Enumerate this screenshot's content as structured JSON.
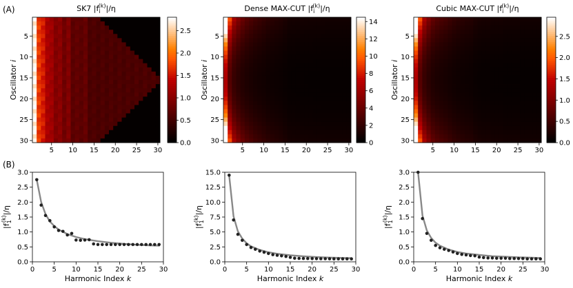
{
  "panel_labels": [
    "(A)",
    "(B)"
  ],
  "chart_data": [
    {
      "type": "heatmap",
      "title": "SK7 |f_i^(k)|/η",
      "ylabel": "Oscillator i",
      "x_ticks": [
        "5",
        "10",
        "15",
        "20",
        "25",
        "30"
      ],
      "y_ticks": [
        "5",
        "10",
        "15",
        "20",
        "25",
        "30"
      ],
      "colorbar_ticks": [
        "0.0",
        "0.5",
        "1.0",
        "1.5",
        "2.0",
        "2.5"
      ],
      "vmin": 0,
      "vmax": 2.8,
      "colormap": "gist_heat",
      "k_range": [
        1,
        30
      ],
      "i_range": [
        1,
        30
      ],
      "values_by_k": [
        2.75,
        1.9,
        1.55,
        1.38,
        1.17,
        1.05,
        1.02,
        0.9,
        0.95,
        0.73,
        0.72,
        0.73,
        0.74,
        0.6,
        0.58,
        0.58,
        0.58,
        0.58,
        0.58,
        0.58,
        0.58,
        0.58,
        0.58,
        0.58,
        0.58,
        0.58,
        0.58,
        0.58,
        0.58,
        0.58
      ],
      "pattern": "triangle of zeros for harmonics beyond the middle oscillators"
    },
    {
      "type": "heatmap",
      "title": "Dense MAX-CUT |f_i^(k)|/η",
      "ylabel": "Oscillator i",
      "x_ticks": [
        "5",
        "10",
        "15",
        "20",
        "25",
        "30"
      ],
      "y_ticks": [
        "5",
        "10",
        "15",
        "20",
        "25",
        "30"
      ],
      "colorbar_ticks": [
        "0",
        "2",
        "4",
        "6",
        "8",
        "10",
        "12",
        "14"
      ],
      "vmin": 0,
      "vmax": 14.5,
      "colormap": "gist_heat",
      "k_range": [
        1,
        30
      ],
      "i_range": [
        1,
        30
      ],
      "values_by_k": [
        14.5,
        7.0,
        4.6,
        3.6,
        2.9,
        2.4,
        2.1,
        1.8,
        1.6,
        1.4,
        1.2,
        1.1,
        1.0,
        0.9,
        0.75,
        0.6,
        0.58,
        0.56,
        0.55,
        0.54,
        0.53,
        0.52,
        0.52,
        0.51,
        0.5,
        0.5,
        0.5,
        0.5,
        0.5,
        0.5
      ]
    },
    {
      "type": "heatmap",
      "title": "Cubic MAX-CUT |f_i^(k)|/η",
      "ylabel": "Oscillator i",
      "x_ticks": [
        "5",
        "10",
        "15",
        "20",
        "25",
        "30"
      ],
      "y_ticks": [
        "5",
        "10",
        "15",
        "20",
        "25",
        "30"
      ],
      "colorbar_ticks": [
        "0.0",
        "0.5",
        "1.0",
        "1.5",
        "2.0",
        "2.5"
      ],
      "vmin": 0,
      "vmax": 2.95,
      "colormap": "gist_heat",
      "k_range": [
        1,
        30
      ],
      "i_range": [
        1,
        30
      ],
      "values_by_k": [
        3.0,
        1.45,
        0.95,
        0.72,
        0.55,
        0.47,
        0.42,
        0.38,
        0.33,
        0.28,
        0.25,
        0.23,
        0.21,
        0.2,
        0.16,
        0.14,
        0.13,
        0.13,
        0.12,
        0.12,
        0.12,
        0.11,
        0.11,
        0.11,
        0.11,
        0.1,
        0.1,
        0.1,
        0.1,
        0.1
      ]
    },
    {
      "type": "scatter",
      "xlabel": "Harmonic Index k",
      "ylabel": "|f_1^(k)|/η",
      "x_ticks": [
        "0",
        "5",
        "10",
        "15",
        "20",
        "25",
        "30"
      ],
      "y_ticks": [
        "0.0",
        "0.5",
        "1.0",
        "1.5",
        "2.0",
        "2.5",
        "3.0"
      ],
      "xlim": [
        0,
        30
      ],
      "ylim": [
        0,
        3.0
      ],
      "points": {
        "x": [
          1,
          2,
          3,
          4,
          5,
          6,
          7,
          8,
          9,
          10,
          11,
          12,
          13,
          14,
          15,
          16,
          17,
          18,
          19,
          20,
          21,
          22,
          23,
          24,
          25,
          26,
          27,
          28,
          29
        ],
        "y": [
          2.75,
          1.9,
          1.55,
          1.38,
          1.17,
          1.05,
          1.02,
          0.9,
          0.95,
          0.73,
          0.72,
          0.73,
          0.74,
          0.6,
          0.58,
          0.58,
          0.58,
          0.58,
          0.58,
          0.58,
          0.58,
          0.58,
          0.58,
          0.58,
          0.58,
          0.58,
          0.58,
          0.58,
          0.58
        ]
      },
      "fit": {
        "x": [
          1,
          2,
          3,
          4,
          5,
          6,
          8,
          10,
          12,
          15,
          18,
          21,
          24,
          27,
          29
        ],
        "y": [
          2.75,
          2.0,
          1.6,
          1.35,
          1.2,
          1.08,
          0.93,
          0.83,
          0.76,
          0.69,
          0.64,
          0.6,
          0.57,
          0.55,
          0.54
        ]
      }
    },
    {
      "type": "scatter",
      "xlabel": "Harmonic Index k",
      "ylabel": "|f_1^(k)|/η",
      "x_ticks": [
        "0",
        "5",
        "10",
        "15",
        "20",
        "25",
        "30"
      ],
      "y_ticks": [
        "0.0",
        "2.5",
        "5.0",
        "7.5",
        "10.0",
        "12.5",
        "15.0"
      ],
      "xlim": [
        0,
        30
      ],
      "ylim": [
        0,
        15.0
      ],
      "points": {
        "x": [
          1,
          2,
          3,
          4,
          5,
          6,
          7,
          8,
          9,
          10,
          11,
          12,
          13,
          14,
          15,
          16,
          17,
          18,
          19,
          20,
          21,
          22,
          23,
          24,
          25,
          26,
          27,
          28,
          29
        ],
        "y": [
          14.5,
          7.0,
          4.6,
          3.6,
          2.9,
          2.4,
          2.1,
          1.8,
          1.6,
          1.4,
          1.2,
          1.1,
          1.0,
          0.9,
          0.75,
          0.6,
          0.58,
          0.56,
          0.55,
          0.54,
          0.53,
          0.52,
          0.52,
          0.51,
          0.5,
          0.5,
          0.5,
          0.5,
          0.5
        ]
      },
      "fit": {
        "x": [
          1,
          2,
          3,
          4,
          5,
          6,
          8,
          10,
          12,
          15,
          18,
          21,
          24,
          27,
          29
        ],
        "y": [
          14.5,
          7.6,
          5.1,
          3.9,
          3.1,
          2.6,
          2.0,
          1.6,
          1.35,
          1.1,
          0.92,
          0.8,
          0.72,
          0.66,
          0.62
        ]
      }
    },
    {
      "type": "scatter",
      "xlabel": "Harmonic Index k",
      "ylabel": "|f_1^(k)|/η",
      "x_ticks": [
        "0",
        "5",
        "10",
        "15",
        "20",
        "25",
        "30"
      ],
      "y_ticks": [
        "0.0",
        "0.5",
        "1.0",
        "1.5",
        "2.0",
        "2.5",
        "3.0"
      ],
      "xlim": [
        0,
        30
      ],
      "ylim": [
        0,
        3.0
      ],
      "points": {
        "x": [
          1,
          2,
          3,
          4,
          5,
          6,
          7,
          8,
          9,
          10,
          11,
          12,
          13,
          14,
          15,
          16,
          17,
          18,
          19,
          20,
          21,
          22,
          23,
          24,
          25,
          26,
          27,
          28,
          29
        ],
        "y": [
          3.0,
          1.45,
          0.95,
          0.72,
          0.55,
          0.47,
          0.42,
          0.38,
          0.33,
          0.28,
          0.25,
          0.23,
          0.21,
          0.2,
          0.16,
          0.14,
          0.13,
          0.13,
          0.12,
          0.12,
          0.12,
          0.11,
          0.11,
          0.11,
          0.11,
          0.1,
          0.1,
          0.1,
          0.1
        ]
      },
      "fit": {
        "x": [
          1,
          2,
          3,
          4,
          5,
          6,
          8,
          10,
          12,
          15,
          18,
          21,
          24,
          27,
          29
        ],
        "y": [
          3.0,
          1.55,
          1.05,
          0.8,
          0.64,
          0.54,
          0.41,
          0.33,
          0.28,
          0.23,
          0.19,
          0.17,
          0.15,
          0.14,
          0.13
        ]
      }
    }
  ]
}
